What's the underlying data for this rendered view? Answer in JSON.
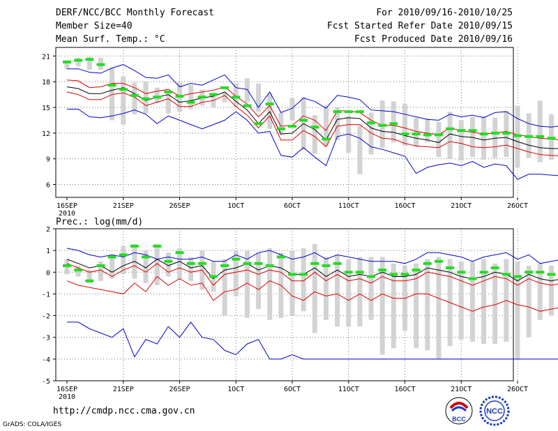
{
  "header": {
    "title": "DERF/NCC/BCC Monthly Forecast",
    "member_size": "Member Size=40",
    "variable": "Mean Surf. Temp.: °C",
    "period": "For 2010/09/16-2010/10/25",
    "started": "Fcst Started Refer Date 2010/09/15",
    "produced": "Fcst Produced Date 2010/09/16"
  },
  "footer": {
    "url": "http://cmdp.ncc.cma.gov.cn",
    "credit": "GrADS: COLA/IGES",
    "logo_left": "BCC",
    "logo_right": "NCC"
  },
  "colors": {
    "box": "#d3d3d3",
    "mean": "#000000",
    "inner": "#e00000",
    "outer": "#0000d0",
    "median": "#22dd22",
    "grid": "#707070"
  },
  "chart_data": [
    {
      "type": "line",
      "title": "Mean Surf. Temp.: °C",
      "x_labels": [
        "16SEP",
        "21SEP",
        "26SEP",
        "1OCT",
        "6OCT",
        "11OCT",
        "16OCT",
        "21OCT",
        "26OCT"
      ],
      "x_sublabel": "2010",
      "ylim": [
        4.5,
        22
      ],
      "yticks": [
        6,
        9,
        12,
        15,
        18,
        21
      ],
      "series": [
        {
          "name": "box_high",
          "values": [
            20.5,
            20.8,
            20.9,
            20.8,
            19.6,
            18.6,
            17.9,
            18.0,
            17.3,
            16.6,
            17.9,
            17.6,
            17.1,
            16.7,
            16.8,
            17.8,
            18.4,
            17.8,
            16.6,
            14.4,
            16.1,
            16.2,
            14.1,
            15.2,
            15.0,
            14.0,
            12.9,
            14.4,
            15.8,
            15.7,
            15.4,
            13.8,
            13.7,
            13.3,
            14.5,
            13.5,
            13.9,
            14.0,
            13.8,
            14.6,
            15.2,
            14.3,
            15.8,
            14.2,
            13.8
          ]
        },
        {
          "name": "box_low",
          "values": [
            19.5,
            19.8,
            19.4,
            19.4,
            13.5,
            13.0,
            14.2,
            14.3,
            15.5,
            14.3,
            14.5,
            14.8,
            15.2,
            15.0,
            15.6,
            15.0,
            15.6,
            14.5,
            12.5,
            11.8,
            13.5,
            10.1,
            9.6,
            10.5,
            11.2,
            9.7,
            7.2,
            9.5,
            10.3,
            10.9,
            10.5,
            10.4,
            10.9,
            9.2,
            9.0,
            8.8,
            9.2,
            8.9,
            9.1,
            9.2,
            8.0,
            9.1,
            8.6,
            8.9,
            8.3
          ]
        },
        {
          "name": "median",
          "values": [
            20.3,
            20.5,
            20.6,
            20.0,
            17.6,
            17.1,
            16.4,
            16.0,
            16.2,
            16.8,
            16.3,
            15.6,
            16.2,
            16.5,
            17.3,
            16.2,
            15.2,
            13.1,
            15.4,
            12.5,
            12.8,
            13.5,
            12.7,
            11.3,
            14.5,
            14.5,
            14.5,
            13.2,
            12.9,
            13.1,
            11.9,
            11.9,
            11.8,
            11.8,
            12.5,
            12.3,
            12.3,
            11.9,
            12.0,
            12.0,
            11.7,
            11.6,
            11.6,
            11.4,
            11.3
          ]
        },
        {
          "name": "outer_high",
          "values": [
            19.5,
            19.5,
            19.1,
            19.0,
            19.6,
            20.0,
            19.3,
            18.5,
            18.4,
            18.8,
            17.4,
            17.8,
            17.6,
            18.2,
            18.8,
            17.3,
            17.1,
            15.0,
            16.8,
            14.4,
            14.9,
            16.1,
            15.7,
            14.9,
            16.4,
            16.2,
            15.9,
            14.7,
            14.6,
            14.5,
            14.2,
            13.9,
            13.6,
            13.5,
            14.2,
            13.9,
            14.1,
            13.8,
            14.4,
            14.5,
            13.7,
            13.1,
            12.8,
            12.7,
            12.9
          ]
        },
        {
          "name": "inner_high",
          "values": [
            18.2,
            18.1,
            17.3,
            17.4,
            17.8,
            17.8,
            17.3,
            16.6,
            16.9,
            17.1,
            16.3,
            16.6,
            16.8,
            17.0,
            17.4,
            16.3,
            15.4,
            13.9,
            15.2,
            12.8,
            12.9,
            14.0,
            13.5,
            12.3,
            14.6,
            14.6,
            14.4,
            13.5,
            12.9,
            12.9,
            12.6,
            12.2,
            12.0,
            11.8,
            12.6,
            12.3,
            12.1,
            11.9,
            12.0,
            12.2,
            11.8,
            11.6,
            11.4,
            11.3,
            11.2
          ]
        },
        {
          "name": "mean",
          "values": [
            17.4,
            17.2,
            16.6,
            16.6,
            17.0,
            17.3,
            16.6,
            15.8,
            16.2,
            16.5,
            15.6,
            15.8,
            16.1,
            16.3,
            16.8,
            15.7,
            14.7,
            13.1,
            14.5,
            11.9,
            12.0,
            13.1,
            12.4,
            11.2,
            13.6,
            13.8,
            13.7,
            12.6,
            12.2,
            12.1,
            11.7,
            11.4,
            11.2,
            10.9,
            11.9,
            11.6,
            11.5,
            11.2,
            11.4,
            11.5,
            11.0,
            10.6,
            10.3,
            10.2,
            10.2
          ]
        },
        {
          "name": "inner_low",
          "values": [
            16.8,
            16.5,
            15.9,
            15.9,
            16.5,
            16.7,
            16.2,
            15.2,
            15.6,
            16.0,
            15.1,
            15.1,
            15.6,
            15.8,
            16.4,
            15.1,
            14.1,
            12.6,
            14.0,
            11.2,
            11.2,
            12.3,
            11.6,
            10.4,
            12.8,
            13.0,
            13.0,
            12.0,
            11.4,
            11.3,
            10.8,
            10.5,
            10.4,
            10.3,
            11.0,
            10.8,
            10.4,
            10.3,
            10.4,
            10.6,
            10.2,
            9.8,
            9.5,
            9.4,
            9.3
          ]
        },
        {
          "name": "outer_low",
          "values": [
            14.8,
            14.8,
            13.9,
            13.8,
            14.0,
            14.3,
            14.7,
            14.2,
            13.1,
            14.0,
            13.5,
            13.0,
            12.5,
            13.0,
            13.5,
            14.5,
            13.5,
            12.0,
            12.2,
            9.4,
            9.2,
            10.3,
            9.2,
            8.2,
            11.6,
            11.9,
            11.4,
            10.4,
            10.1,
            9.7,
            9.3,
            7.3,
            8.0,
            8.3,
            8.5,
            8.2,
            8.7,
            8.0,
            8.4,
            8.2,
            6.6,
            7.2,
            7.2,
            7.1,
            7.0
          ]
        }
      ]
    },
    {
      "type": "line",
      "title": "Prec.: log(mm/d)",
      "x_labels": [
        "16SEP",
        "21SEP",
        "26SEP",
        "1OCT",
        "6OCT",
        "11OCT",
        "16OCT",
        "21OCT",
        "26OCT"
      ],
      "x_sublabel": "2010",
      "ylim": [
        -5,
        2
      ],
      "yticks": [
        -5,
        -4,
        -3,
        -2,
        -1,
        0,
        1,
        2
      ],
      "series": [
        {
          "name": "box_high",
          "values": [
            0.6,
            0.3,
            0.1,
            0.5,
            0.8,
            1.2,
            1.3,
            1.0,
            1.3,
            0.9,
            1.1,
            0.7,
            1.0,
            0.5,
            0.6,
            1.0,
            1.0,
            0.9,
            1.1,
            0.9,
            1.0,
            1.1,
            1.3,
            0.7,
            0.8,
            0.6,
            0.7,
            0.7,
            0.7,
            0.4,
            0.3,
            0.4,
            0.6,
            0.7,
            0.6,
            0.5,
            0.5,
            0.6,
            0.4,
            0.6,
            0.5,
            0.3,
            0.4,
            0.3,
            0.2
          ]
        },
        {
          "name": "box_low",
          "values": [
            -0.1,
            -0.2,
            -0.5,
            -0.4,
            -0.3,
            -0.1,
            -0.3,
            -0.5,
            -0.6,
            -0.2,
            -0.3,
            -0.4,
            -0.8,
            -0.9,
            -2.0,
            -1.1,
            -2.1,
            -1.7,
            -2.2,
            -2.1,
            -2.0,
            -1.8,
            -2.8,
            -2.2,
            -2.5,
            -2.5,
            -2.5,
            -2.2,
            -3.8,
            -3.5,
            -2.7,
            -3.5,
            -3.6,
            -4.0,
            -3.4,
            -3.1,
            -3.2,
            -3.3,
            -3.3,
            -3.2,
            -4.0,
            -3.0,
            -2.2,
            -2.0,
            -2.0
          ]
        },
        {
          "name": "median",
          "values": [
            0.3,
            0.1,
            -0.4,
            0.3,
            0.7,
            0.8,
            1.2,
            0.7,
            1.2,
            0.5,
            0.9,
            0.4,
            0.4,
            -0.2,
            0.3,
            0.6,
            0.4,
            0.4,
            0.3,
            0.7,
            -0.1,
            -0.1,
            0.4,
            0.3,
            0.4,
            0.0,
            0.0,
            -0.2,
            0.1,
            -0.1,
            -0.1,
            0.1,
            0.4,
            0.5,
            0.2,
            0.0,
            -0.3,
            0.0,
            0.2,
            -0.1,
            -0.2,
            0.0,
            0.0,
            -0.1,
            -0.1
          ]
        },
        {
          "name": "outer_high",
          "values": [
            1.1,
            1.0,
            0.8,
            0.7,
            0.8,
            0.7,
            0.9,
            0.8,
            0.6,
            0.7,
            0.6,
            0.6,
            0.7,
            0.5,
            0.5,
            0.8,
            0.6,
            0.9,
            1.0,
            0.8,
            0.6,
            0.7,
            0.9,
            0.6,
            0.8,
            0.7,
            0.6,
            0.5,
            0.5,
            0.5,
            0.4,
            0.6,
            0.9,
            0.9,
            0.8,
            0.7,
            0.5,
            0.7,
            0.8,
            0.9,
            0.6,
            0.8,
            0.4,
            0.5,
            0.6
          ]
        },
        {
          "name": "mean",
          "values": [
            0.6,
            0.4,
            0.2,
            0.3,
            0.0,
            0.3,
            0.5,
            0.2,
            0.6,
            0.3,
            0.5,
            0.2,
            0.3,
            -0.3,
            0.1,
            0.2,
            0.4,
            0.1,
            0.3,
            0.2,
            -0.1,
            -0.1,
            0.2,
            -0.2,
            0.1,
            -0.2,
            -0.1,
            -0.2,
            0.0,
            -0.2,
            -0.2,
            -0.1,
            0.2,
            0.1,
            0.0,
            -0.2,
            -0.3,
            -0.2,
            0.0,
            -0.1,
            -0.4,
            -0.1,
            -0.3,
            -0.4,
            -0.3
          ]
        },
        {
          "name": "inner_low",
          "values": [
            0.4,
            0.2,
            0.0,
            0.1,
            -0.2,
            0.1,
            0.3,
            0.0,
            0.4,
            0.0,
            0.2,
            0.0,
            0.1,
            -0.6,
            -0.1,
            0.0,
            0.1,
            -0.1,
            0.1,
            0.0,
            -0.4,
            -0.4,
            0.0,
            -0.4,
            -0.1,
            -0.4,
            -0.3,
            -0.5,
            -0.2,
            -0.4,
            -0.4,
            -0.3,
            0.0,
            -0.1,
            -0.2,
            -0.4,
            -0.6,
            -0.4,
            -0.2,
            -0.3,
            -0.6,
            -0.3,
            -0.5,
            -0.6,
            -0.5
          ]
        },
        {
          "name": "inner_low2",
          "values": [
            -0.4,
            -0.6,
            -0.7,
            -0.8,
            -0.9,
            -1.0,
            -0.5,
            -0.9,
            -0.2,
            -0.6,
            -0.3,
            -0.6,
            -0.5,
            -1.3,
            -0.9,
            -0.8,
            -0.5,
            -0.8,
            -0.4,
            -0.6,
            -1.1,
            -1.3,
            -0.9,
            -1.1,
            -1.0,
            -1.3,
            -1.0,
            -1.3,
            -1.0,
            -1.2,
            -1.2,
            -1.0,
            -1.0,
            -1.2,
            -1.4,
            -1.6,
            -1.8,
            -1.6,
            -1.5,
            -1.3,
            -1.5,
            -1.6,
            -1.8,
            -1.7,
            -1.6
          ]
        },
        {
          "name": "outer_low",
          "values": [
            -2.3,
            -2.3,
            -2.6,
            -2.8,
            -3.0,
            -2.6,
            -3.9,
            -3.1,
            -3.3,
            -2.5,
            -3.0,
            -2.3,
            -3.0,
            -3.1,
            -3.6,
            -3.8,
            -3.3,
            -3.1,
            -4.0,
            -4.0,
            -3.8,
            -4.0,
            -4.0,
            -4.0,
            -4.0,
            -4.0,
            -4.0,
            -4.0,
            -4.0,
            -4.0,
            -4.0,
            -4.0,
            -4.0,
            -4.0,
            -4.0,
            -4.0,
            -4.0,
            -4.0,
            -4.0,
            -4.0,
            -4.0,
            -4.0,
            -4.0,
            -4.0,
            -4.0
          ]
        }
      ]
    }
  ]
}
